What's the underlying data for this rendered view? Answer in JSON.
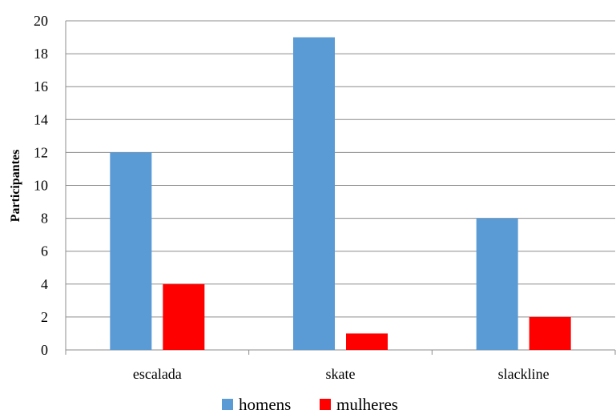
{
  "chart_data": {
    "type": "bar",
    "categories": [
      "escalada",
      "skate",
      "slackline"
    ],
    "series": [
      {
        "name": "homens",
        "values": [
          12,
          19,
          8
        ],
        "color": "#5b9bd5"
      },
      {
        "name": "mulheres",
        "values": [
          4,
          1,
          2
        ],
        "color": "#ff0000"
      }
    ],
    "ylabel": "Participantes",
    "ylim": [
      0,
      20
    ],
    "yticks": [
      0,
      2,
      4,
      6,
      8,
      10,
      12,
      14,
      16,
      18,
      20
    ],
    "grid": true,
    "legend": "bottom"
  }
}
